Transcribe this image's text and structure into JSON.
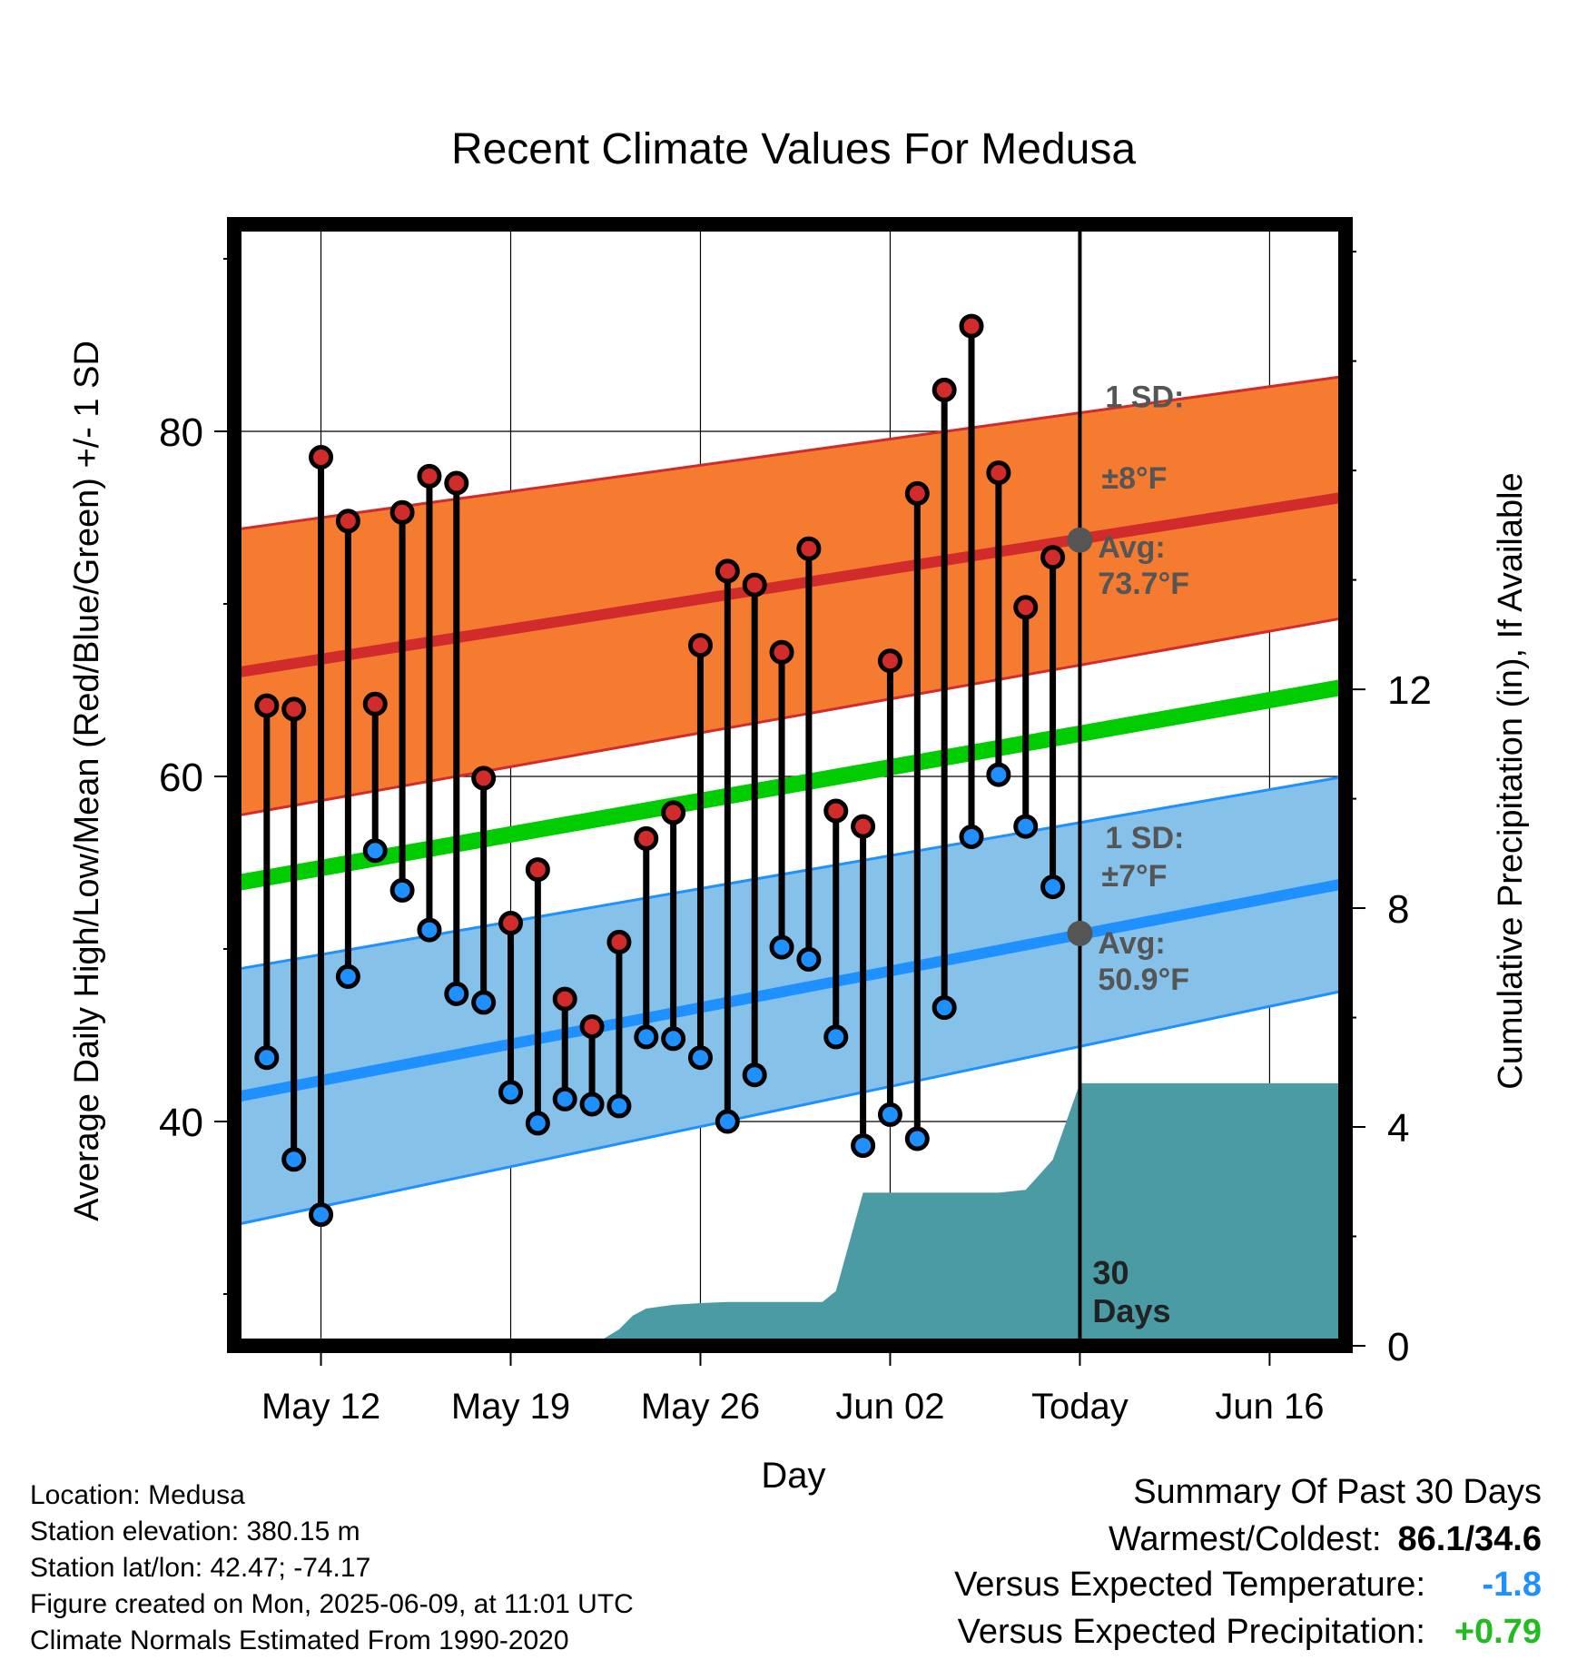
{
  "chart_data": {
    "type": "line",
    "title": "Recent Climate Values For Medusa",
    "xlabel": "Day",
    "ylabel": "Average Daily High/Low/Mean (Red/Blue/Green) +/- 1 SD",
    "y2label": "Cumulative Precipitation (in), If Available",
    "x_tick_labels": [
      "May 12",
      "May 19",
      "May 26",
      "Jun 02",
      "Today",
      "Jun 16"
    ],
    "x_tick_days": [
      0,
      7,
      14,
      21,
      28,
      35
    ],
    "x_range_days": [
      -3.2,
      37.8
    ],
    "ylim": [
      27,
      92
    ],
    "y_ticks": [
      40,
      60,
      80
    ],
    "y2lim": [
      0,
      20.5
    ],
    "y2_ticks": [
      0,
      4,
      8,
      12
    ],
    "grid": true,
    "x_days": [
      -2,
      -1,
      0,
      1,
      2,
      3,
      4,
      5,
      6,
      7,
      8,
      9,
      10,
      11,
      12,
      13,
      14,
      15,
      16,
      17,
      18,
      19,
      20,
      21,
      22,
      23,
      24,
      25,
      26,
      27
    ],
    "series": [
      {
        "name": "High",
        "color": "#cc2222",
        "values": [
          64.1,
          63.9,
          78.5,
          74.8,
          64.2,
          75.3,
          77.4,
          77.0,
          59.9,
          51.5,
          54.6,
          47.1,
          45.5,
          50.4,
          56.4,
          57.9,
          67.6,
          71.9,
          71.1,
          67.2,
          73.2,
          58.0,
          57.1,
          66.7,
          76.4,
          82.4,
          86.1,
          77.6,
          69.8,
          72.7
        ]
      },
      {
        "name": "Low",
        "color": "#1e90ff",
        "values": [
          43.7,
          37.8,
          34.6,
          48.4,
          55.7,
          53.4,
          51.1,
          47.4,
          46.9,
          41.7,
          39.9,
          41.3,
          41.0,
          40.9,
          44.9,
          44.8,
          43.7,
          40.0,
          42.7,
          50.1,
          49.4,
          44.9,
          38.6,
          40.4,
          39.0,
          46.6,
          56.5,
          60.1,
          57.1,
          53.6
        ]
      }
    ],
    "normals": {
      "high_avg": [
        66.0,
        76.2
      ],
      "high_sd": [
        8.3,
        7.0
      ],
      "mean": [
        53.8,
        65.2
      ],
      "low_avg": [
        41.4,
        53.8
      ],
      "low_sd": [
        7.4,
        6.2
      ],
      "today_high_avg": 73.7,
      "today_low_avg": 50.9
    },
    "precip_cumulative": {
      "days": [
        -2,
        10,
        11,
        11.5,
        12,
        13,
        14,
        15,
        16,
        17,
        18,
        18.5,
        19,
        20,
        21,
        22,
        23,
        24,
        25,
        26,
        27,
        28,
        29,
        30,
        31,
        32,
        33,
        34,
        35,
        36,
        37
      ],
      "values": [
        0,
        0,
        0.3,
        0.55,
        0.68,
        0.75,
        0.78,
        0.8,
        0.8,
        0.8,
        0.8,
        0.8,
        1.0,
        2.8,
        2.8,
        2.8,
        2.8,
        2.8,
        2.8,
        2.85,
        3.4,
        4.8,
        4.8,
        4.8,
        4.8,
        4.8,
        4.8,
        4.8,
        4.8,
        4.8,
        4.8
      ]
    },
    "annotations": {
      "high_sd_label": "1 SD:",
      "high_sd_value": "±8°F",
      "high_avg_label": "Avg:",
      "high_avg_value": "73.7°F",
      "low_sd_label": "1 SD:",
      "low_sd_value": "±7°F",
      "low_avg_label": "Avg:",
      "low_avg_value": "50.9°F",
      "window_number": "30",
      "window_unit": "Days"
    },
    "colors": {
      "high_band": "#f47b30",
      "high_line": "#d22b2b",
      "low_band": "#85c1e9",
      "low_line": "#1e90ff",
      "mean_line": "#00cc00",
      "precip": "#4a9ba3",
      "annotation": "#555555"
    }
  },
  "footer": {
    "location": "Location: Medusa",
    "elevation": "Station elevation: 380.15 m",
    "latlon": "Station lat/lon: 42.47; -74.17",
    "created": "Figure created on Mon, 2025-06-09, at 11:01 UTC",
    "normals": "Climate Normals Estimated From 1990-2020"
  },
  "summary": {
    "title": "Summary Of Past 30 Days",
    "warmest_label": "Warmest/Coldest:",
    "warmest_value": "86.1/34.6",
    "temp_label": "Versus Expected Temperature:",
    "temp_value": "-1.8",
    "temp_color": "#1e90ff",
    "precip_label": "Versus Expected Precipitation:",
    "precip_value": "+0.79",
    "precip_color": "#22bb22"
  }
}
